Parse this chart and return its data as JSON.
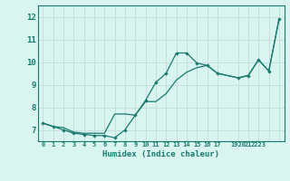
{
  "title": "",
  "xlabel": "Humidex (Indice chaleur)",
  "bg_color": "#d8f5f0",
  "grid_color": "#c8dede",
  "line_color": "#1a7a6e",
  "xlim": [
    -0.5,
    23.5
  ],
  "ylim": [
    6.5,
    12.5
  ],
  "yticks": [
    7,
    8,
    9,
    10,
    11,
    12
  ],
  "xtick_positions": [
    0,
    1,
    2,
    3,
    4,
    5,
    6,
    7,
    8,
    9,
    10,
    11,
    12,
    13,
    14,
    15,
    16,
    17,
    18.5,
    20,
    21.5,
    23
  ],
  "xtick_labels": [
    "0",
    "1",
    "2",
    "3",
    "4",
    "5",
    "6",
    "7",
    "8",
    "9",
    "10",
    "11",
    "12",
    "13",
    "14",
    "15",
    "16",
    "17",
    "1920",
    "21",
    "2223",
    ""
  ],
  "line1_x": [
    0,
    1,
    2,
    3,
    4,
    5,
    6,
    7,
    8,
    9,
    10,
    11,
    12,
    13,
    14,
    15,
    16,
    17,
    19,
    20,
    21,
    22,
    23
  ],
  "line1_y": [
    7.3,
    7.15,
    7.0,
    6.85,
    6.8,
    6.75,
    6.75,
    6.65,
    7.0,
    7.65,
    8.3,
    9.1,
    9.5,
    10.4,
    10.4,
    9.95,
    9.85,
    9.5,
    9.3,
    9.4,
    10.1,
    9.6,
    11.9
  ],
  "line2_x": [
    0,
    1,
    2,
    3,
    4,
    5,
    6,
    7,
    8,
    9,
    10,
    11,
    12,
    13,
    14,
    15,
    16,
    17,
    19,
    20,
    21,
    22,
    23
  ],
  "line2_y": [
    7.3,
    7.15,
    7.1,
    6.9,
    6.85,
    6.85,
    6.85,
    7.7,
    7.7,
    7.65,
    8.25,
    8.25,
    8.6,
    9.2,
    9.55,
    9.75,
    9.85,
    9.5,
    9.3,
    9.4,
    10.1,
    9.6,
    11.9
  ]
}
